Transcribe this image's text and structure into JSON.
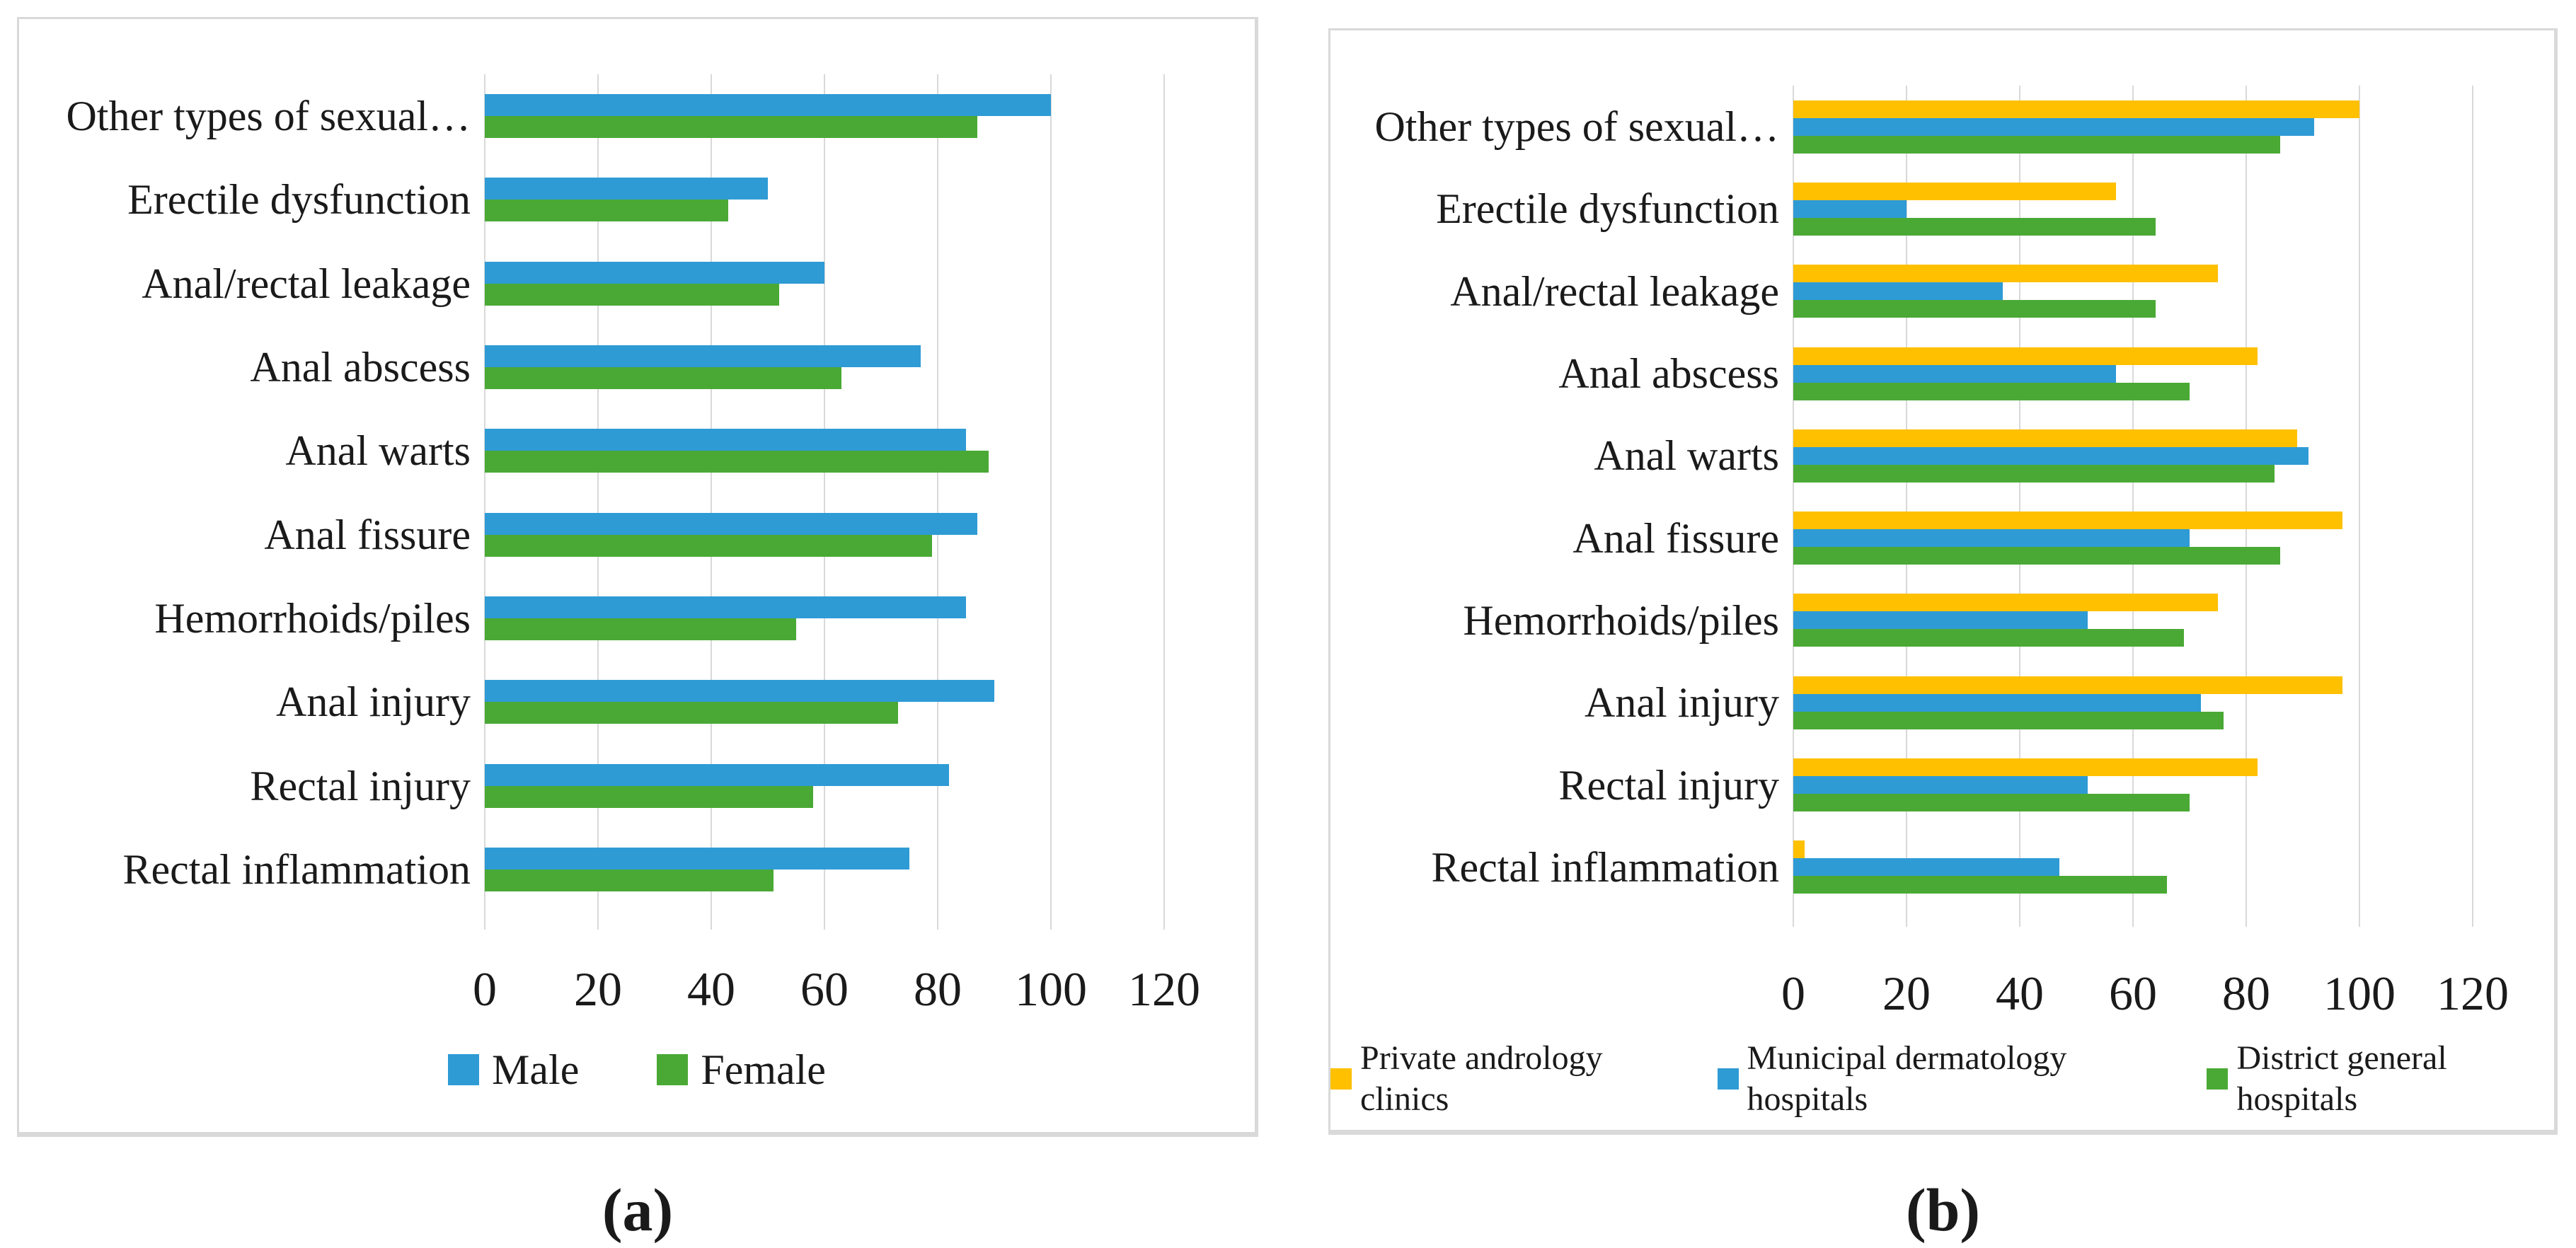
{
  "page": {
    "background": "#FFFFFF"
  },
  "colors": {
    "blue": "#2E9BD5",
    "green": "#4AA935",
    "yellow": "#FFC000",
    "gridline": "#D9D9D9",
    "panel_border": "#D9D9D9",
    "text": "#1A1A1A"
  },
  "chart_data": [
    {
      "type": "bar",
      "orientation": "horizontal",
      "panel_label": "(a)",
      "title": "",
      "xlabel": "",
      "ylabel": "",
      "grid": true,
      "legend_position": "bottom",
      "xlim": [
        0,
        120
      ],
      "x_ticks": [
        "0",
        "20",
        "40",
        "60",
        "80",
        "100",
        "120"
      ],
      "categories": [
        "Other types of sexual…",
        "Erectile dysfunction",
        "Anal/rectal leakage",
        "Anal abscess",
        "Anal warts",
        "Anal fissure",
        "Hemorrhoids/piles",
        "Anal injury",
        "Rectal injury",
        "Rectal inflammation"
      ],
      "series": [
        {
          "name": "Male",
          "color": "#2E9BD5",
          "values": [
            100,
            50,
            60,
            77,
            85,
            87,
            85,
            90,
            82,
            75
          ]
        },
        {
          "name": "Female",
          "color": "#4AA935",
          "values": [
            87,
            43,
            52,
            63,
            89,
            79,
            55,
            73,
            58,
            51
          ]
        }
      ]
    },
    {
      "type": "bar",
      "orientation": "horizontal",
      "panel_label": "(b)",
      "title": "",
      "xlabel": "",
      "ylabel": "",
      "grid": true,
      "legend_position": "bottom",
      "xlim": [
        0,
        120
      ],
      "x_ticks": [
        "0",
        "20",
        "40",
        "60",
        "80",
        "100",
        "120"
      ],
      "categories": [
        "Other types of sexual…",
        "Erectile dysfunction",
        "Anal/rectal leakage",
        "Anal abscess",
        "Anal warts",
        "Anal fissure",
        "Hemorrhoids/piles",
        "Anal injury",
        "Rectal injury",
        "Rectal inflammation"
      ],
      "series": [
        {
          "name": "Private andrology clinics",
          "color": "#FFC000",
          "values": [
            100,
            57,
            75,
            82,
            89,
            97,
            75,
            97,
            82,
            2
          ]
        },
        {
          "name": "Municipal dermatology hospitals",
          "color": "#2E9BD5",
          "values": [
            92,
            20,
            37,
            57,
            91,
            70,
            52,
            72,
            52,
            47
          ]
        },
        {
          "name": "District general hospitals",
          "color": "#4AA935",
          "values": [
            86,
            64,
            64,
            70,
            85,
            86,
            69,
            76,
            70,
            66
          ]
        }
      ]
    }
  ]
}
